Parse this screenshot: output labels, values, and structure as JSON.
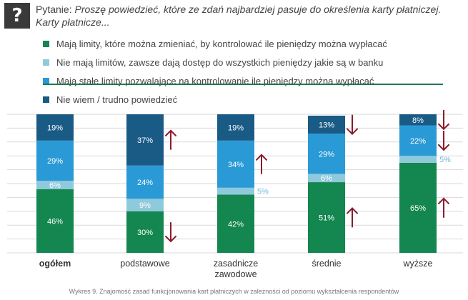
{
  "header": {
    "icon": "question-mark-icon",
    "question_lead": "Pytanie:",
    "question_text": "Proszę powiedzieć, które ze zdań najbardziej pasuje do określenia karty płatniczej. Karty płatnicze..."
  },
  "legend": [
    {
      "label": "Mają limity, które można zmieniać, by kontrolować ile pieniędzy można wypłacać",
      "color": "#14864f"
    },
    {
      "label": "Nie mają limitów, zawsze dają dostęp do wszystkich pieniędzy jakie są w banku",
      "color": "#8fc9dc"
    },
    {
      "label": "Mają stałe limity pozwalające na kontrolowanie ile pieniędzy można wypłacać",
      "color": "#2a9ad6"
    },
    {
      "label": "Nie wiem / trudno powiedzieć",
      "color": "#1a5b86"
    }
  ],
  "chart_data": {
    "type": "bar",
    "stacked": true,
    "categories": [
      "ogółem",
      "podstawowe",
      "zasadnicze zawodowe",
      "średnie",
      "wyższe"
    ],
    "series": [
      {
        "name": "Mają limity, które można zmieniać, by kontrolować ile pieniędzy można wypłacać",
        "values": [
          46,
          30,
          42,
          51,
          65
        ],
        "color": "#14864f"
      },
      {
        "name": "Nie mają limitów, zawsze dają dostęp do wszystkich pieniędzy jakie są w banku",
        "values": [
          6,
          9,
          5,
          6,
          5
        ],
        "color": "#8fc9dc"
      },
      {
        "name": "Mają stałe limity pozwalające na kontrolowanie ile pieniędzy można wypłacać",
        "values": [
          29,
          24,
          34,
          29,
          22
        ],
        "color": "#2a9ad6"
      },
      {
        "name": "Nie wiem / trudno powiedzieć",
        "values": [
          19,
          37,
          19,
          13,
          8
        ],
        "color": "#1a5b86"
      }
    ],
    "labels_display": [
      [
        "46%",
        "30%",
        "42%",
        "51%",
        "65%"
      ],
      [
        "6%",
        "9%",
        "5%",
        "6%",
        "5%"
      ],
      [
        "29%",
        "24%",
        "34%",
        "29%",
        "22%"
      ],
      [
        "19%",
        "37%",
        "19%",
        "13%",
        "8%"
      ]
    ],
    "ylim": [
      0,
      100
    ],
    "grid": true,
    "first_category_bold": true,
    "arrows": [
      {
        "category": "podstawowe",
        "series": 3,
        "direction": "up"
      },
      {
        "category": "podstawowe",
        "series": 0,
        "direction": "down"
      },
      {
        "category": "zasadnicze zawodowe",
        "series": 2,
        "direction": "up"
      },
      {
        "category": "średnie",
        "series": 3,
        "direction": "down"
      },
      {
        "category": "średnie",
        "series": 0,
        "direction": "up"
      },
      {
        "category": "wyższe",
        "series": 3,
        "direction": "down"
      },
      {
        "category": "wyższe",
        "series": 2,
        "direction": "down"
      },
      {
        "category": "wyższe",
        "series": 0,
        "direction": "up"
      }
    ],
    "arrow_color": "#8b1a2b",
    "caption": "Wykres 9. Znajomość zasad funkcjonowania kart płatniczych w zależności od poziomu wykształcenia respondentów"
  }
}
